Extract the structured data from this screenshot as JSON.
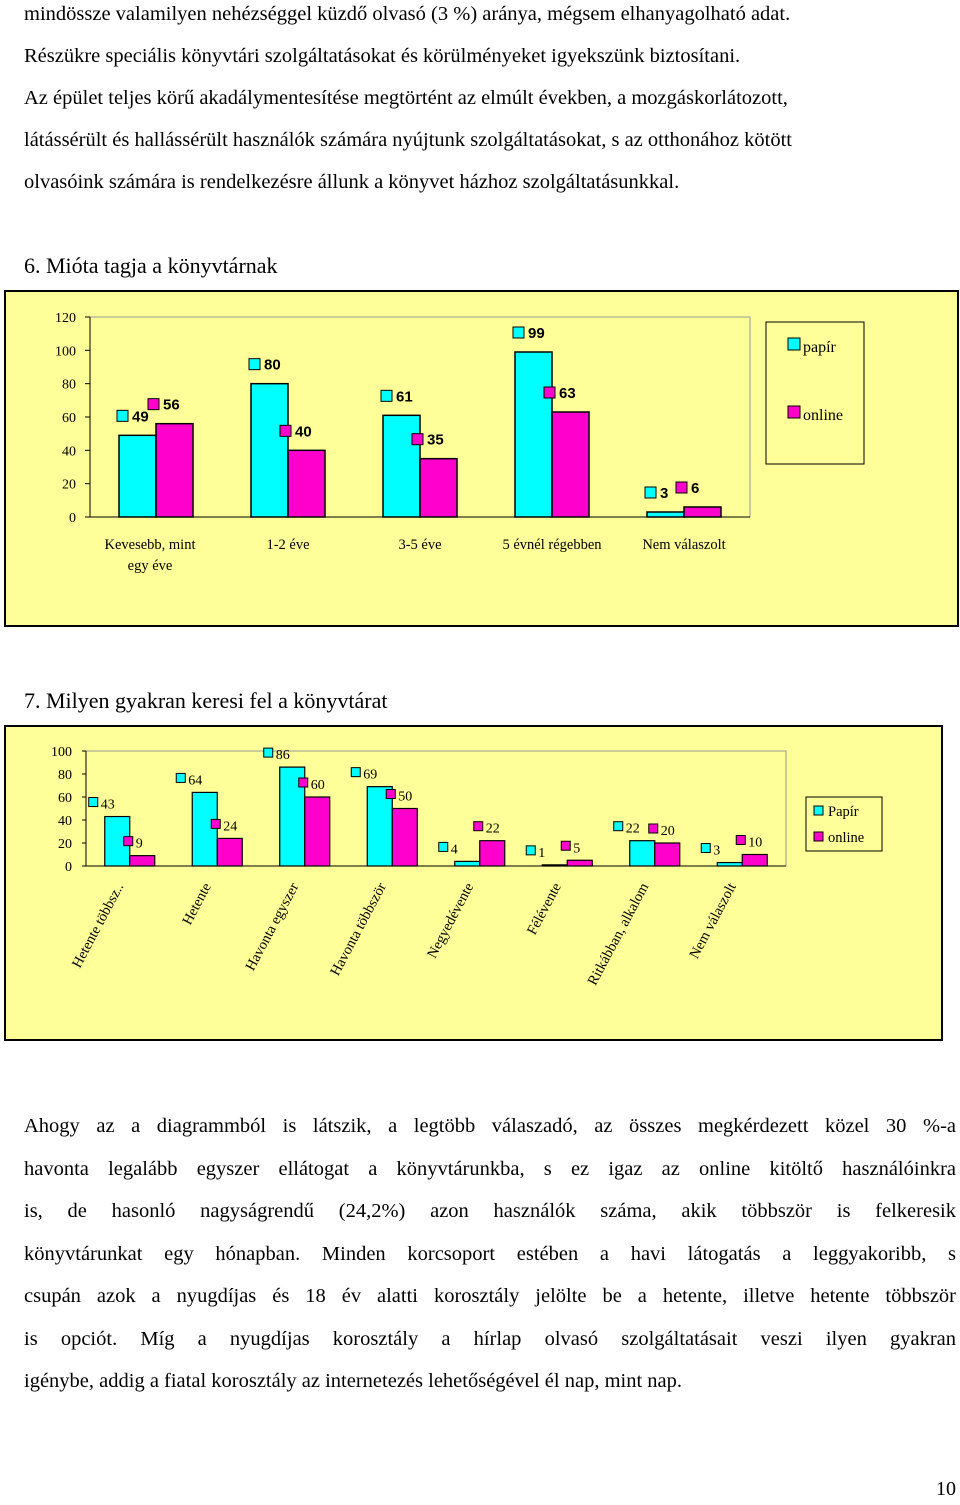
{
  "top_text": {
    "lines": [
      "mindössze valamilyen nehézséggel küzdő olvasó (3 %) aránya, mégsem elhanyagolható adat.",
      "Részükre speciális könyvtári szolgáltatásokat és körülményeket igyekszünk biztosítani.",
      "Az épület teljes körű akadálymentesítése megtörtént az elmúlt években, a mozgáskorlátozott,",
      "látássérült és hallássérült használók számára nyújtunk szolgáltatásokat, s az otthonához kötött",
      "olvasóink számára is rendelkezésre állunk a könyvet házhoz szolgáltatásunkkal."
    ]
  },
  "section6": {
    "heading": "6. Mióta tagja a könyvtárnak"
  },
  "section7": {
    "heading": "7. Milyen gyakran keresi fel a könyvtárat"
  },
  "chart_data": [
    {
      "type": "bar",
      "categories": [
        "Kevesebb, mint egy éve",
        "1-2 éve",
        "3-5 éve",
        "5 évnél régebben",
        "Nem válaszolt"
      ],
      "category_lines": [
        [
          "Kevesebb, mint",
          "egy éve"
        ],
        [
          "1-2 éve"
        ],
        [
          "3-5 éve"
        ],
        [
          "5 évnél régebben"
        ],
        [
          "Nem válaszolt"
        ]
      ],
      "series": [
        {
          "name": "papír",
          "values": [
            49,
            80,
            61,
            99,
            3
          ],
          "color": "#00ffff"
        },
        {
          "name": "online",
          "values": [
            56,
            40,
            35,
            63,
            6
          ],
          "color": "#ff00cc"
        }
      ],
      "ylim": [
        0,
        120
      ],
      "yticks": [
        "0",
        "20",
        "40",
        "60",
        "80",
        "100",
        "120"
      ],
      "grid": false,
      "legend": "right"
    },
    {
      "type": "bar",
      "categories": [
        "Hetente többsz..",
        "Hetente",
        "Havonta egyszer",
        "Havonta többször",
        "Negyedévente",
        "Félévente",
        "Ritkábban, alkalom",
        "Nem válaszolt"
      ],
      "series": [
        {
          "name": "Papír",
          "values": [
            43,
            64,
            86,
            69,
            4,
            1,
            22,
            3
          ],
          "color": "#00ffff"
        },
        {
          "name": "online",
          "values": [
            9,
            24,
            60,
            50,
            22,
            5,
            20,
            10
          ],
          "color": "#ff00cc"
        }
      ],
      "ylim": [
        0,
        100
      ],
      "yticks": [
        "0",
        "20",
        "40",
        "60",
        "80",
        "100"
      ],
      "grid": false,
      "legend": "right"
    }
  ],
  "bottom_text": {
    "lines": [
      "Ahogy az a diagrammból is látszik, a legtöbb válaszadó, az összes megkérdezett közel 30 %-a",
      "havonta legalább egyszer ellátogat a könyvtárunkba, s ez igaz az online kitöltő használóinkra",
      "is, de hasonló nagyságrendű (24,2%) azon használók száma, akik többször is felkeresik",
      "könyvtárunkat egy hónapban. Minden korcsoport estében a havi látogatás a leggyakoribb, s",
      "csupán azok a nyugdíjas és 18 év  alatti korosztály jelölte be a hetente, illetve hetente többször",
      "is opciót. Míg a nyugdíjas korosztály a hírlap olvasó szolgáltatásait veszi ilyen gyakran",
      "igénybe, addig a fiatal korosztály az internetezés lehetőségével él nap, mint nap."
    ]
  },
  "page_number": "10"
}
